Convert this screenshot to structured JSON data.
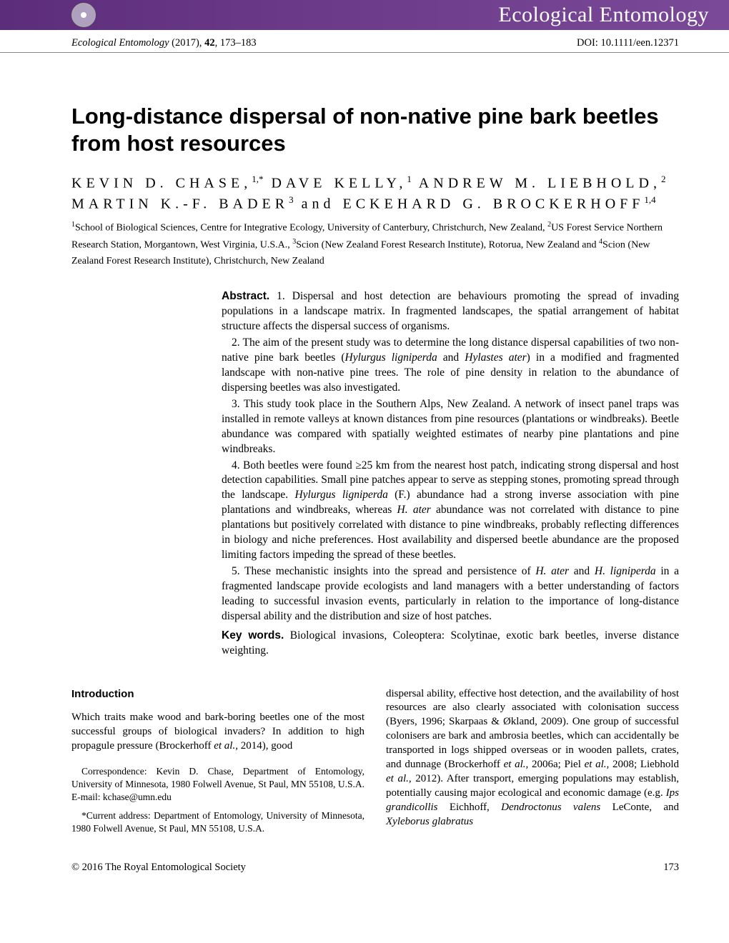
{
  "banner": {
    "journal": "Ecological Entomology"
  },
  "header": {
    "journal": "Ecological Entomology",
    "year": "(2017),",
    "volume": "42",
    "pages": ", 173–183",
    "doi": "DOI: 10.1111/een.12371"
  },
  "article": {
    "title": "Long-distance dispersal of non-native pine bark beetles from host resources",
    "authors_html": "KEVIN D. CHASE,<sup>1,*</sup> DAVE KELLY,<sup>1</sup> ANDREW M. LIEBHOLD,<sup>2</sup> MARTIN K.-F. BADER<sup>3</sup> and ECKEHARD G. BROCKERHOFF<sup>1,4</sup>",
    "affiliations_html": "<sup>1</sup>School of Biological Sciences, Centre for Integrative Ecology, University of Canterbury, Christchurch, New Zealand, <sup>2</sup>US Forest Service Northern Research Station, Morgantown, West Virginia, U.S.A., <sup>3</sup>Scion (New Zealand Forest Research Institute), Rotorua, New Zealand  and <sup>4</sup>Scion (New Zealand Forest Research Institute), Christchurch, New Zealand"
  },
  "abstract": {
    "label": "Abstract.",
    "p1": " 1. Dispersal and host detection are behaviours promoting the spread of invading populations in a landscape matrix. In fragmented landscapes, the spatial arrangement of habitat structure affects the dispersal success of organisms.",
    "p2": "2. The aim of the present study was to determine the long distance dispersal capabilities of two non-native pine bark beetles (Hylurgus ligniperda and Hylastes ater) in a modified and fragmented landscape with non-native pine trees. The role of pine density in relation to the abundance of dispersing beetles was also investigated.",
    "p3": "3. This study took place in the Southern Alps, New Zealand. A network of insect panel traps was installed in remote valleys at known distances from pine resources (plantations or windbreaks). Beetle abundance was compared with spatially weighted estimates of nearby pine plantations and pine windbreaks.",
    "p4": "4. Both beetles were found ≥25 km from the nearest host patch, indicating strong dispersal and host detection capabilities. Small pine patches appear to serve as stepping stones, promoting spread through the landscape. Hylurgus ligniperda (F.) abundance had a strong inverse association with pine plantations and windbreaks, whereas H. ater abundance was not correlated with distance to pine plantations but positively correlated with distance to pine windbreaks, probably reflecting differences in biology and niche preferences. Host availability and dispersed beetle abundance are the proposed limiting factors impeding the spread of these beetles.",
    "p5": "5. These mechanistic insights into the spread and persistence of H. ater and H. ligniperda in a fragmented landscape provide ecologists and land managers with a better understanding of factors leading to successful invasion events, particularly in relation to the importance of long-distance dispersal ability and the distribution and size of host patches.",
    "keywords_label": "Key words.",
    "keywords": " Biological invasions, Coleoptera: Scolytinae, exotic bark beetles, inverse distance weighting."
  },
  "intro": {
    "heading": "Introduction",
    "left_p1": "Which traits make wood and bark-boring beetles one of the most successful groups of biological invaders? In addition to high propagule pressure (Brockerhoff et al., 2014), good",
    "right_p1": "dispersal ability, effective host detection, and the availability of host resources are also clearly associated with colonisation success (Byers, 1996; Skarpaas & Økland, 2009). One group of successful colonisers are bark and ambrosia beetles, which can accidentally be transported in logs shipped overseas or in wooden pallets, crates, and dunnage (Brockerhoff et al., 2006a; Piel et al., 2008; Liebhold et al., 2012). After transport, emerging populations may establish, potentially causing major ecological and economic damage (e.g. Ips grandicollis Eichhoff, Dendroctonus valens LeConte, and Xyleborus glabratus"
  },
  "correspondence": {
    "p1": "Correspondence: Kevin D. Chase, Department of Entomology, University of Minnesota, 1980 Folwell Avenue, St Paul, MN 55108, U.S.A. E-mail: kchase@umn.edu",
    "p2": "*Current address: Department of Entomology, University of Minnesota, 1980 Folwell Avenue, St Paul, MN 55108, U.S.A."
  },
  "footer": {
    "copyright": "© 2016 The Royal Entomological Society",
    "page": "173"
  }
}
